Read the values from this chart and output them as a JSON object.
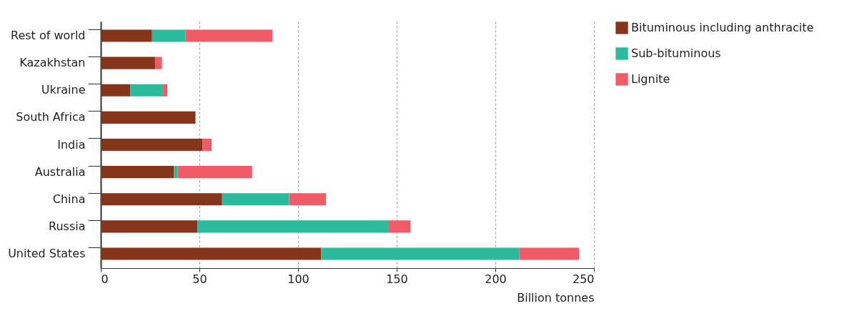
{
  "chart_data": {
    "type": "bar",
    "orientation": "horizontal",
    "stacked": true,
    "xlabel": "Billion tonnes",
    "categories": [
      "Rest of world",
      "Kazakhstan",
      "Ukraine",
      "South Africa",
      "India",
      "Australia",
      "China",
      "Russia",
      "United States"
    ],
    "series": [
      {
        "name": "Bituminous including anthracite",
        "color": "#85361a",
        "values": [
          26,
          27.5,
          15,
          48,
          51.6,
          37,
          61.5,
          49,
          111.7
        ]
      },
      {
        "name": "Sub-bituminous",
        "color": "#2bbb9c",
        "values": [
          17,
          null,
          16.5,
          null,
          null,
          2,
          34,
          97,
          100.5
        ]
      },
      {
        "name": "Lignite",
        "color": "#f15b68",
        "values": [
          44,
          3.5,
          2.2,
          null,
          4.6,
          37.7,
          18.7,
          11,
          30.3
        ]
      }
    ],
    "xlim": [
      0,
      250
    ],
    "xticks": [
      0,
      50,
      100,
      150,
      200,
      250
    ],
    "grid": "x",
    "legend": "top right"
  }
}
